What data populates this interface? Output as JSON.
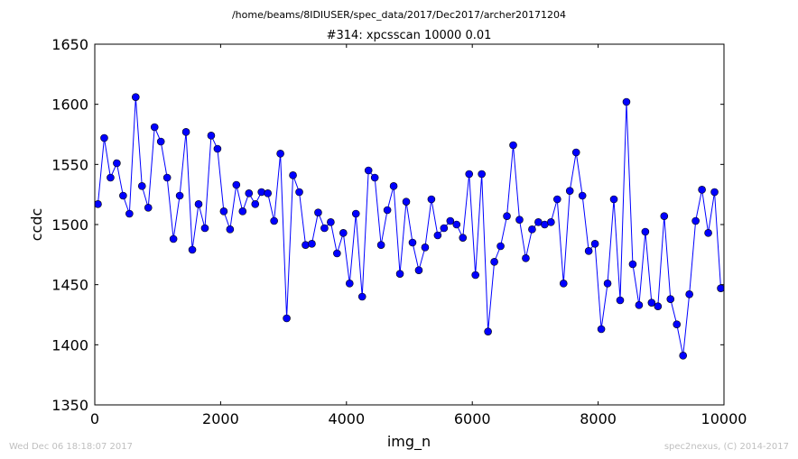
{
  "suptitle": "/home/beams/8IDIUSER/spec_data/2017/Dec2017/archer20171204",
  "footer_left": "Wed Dec 06 18:18:07 2017",
  "footer_right": "spec2nexus, (C) 2014-2017",
  "colors": {
    "series": "#0000ff",
    "axes": "#000000",
    "footer": "#bfbfbf"
  },
  "chart_data": {
    "type": "line",
    "title": "#314: xpcsscan 10000 0.01",
    "xlabel": "img_n",
    "ylabel": "ccdc",
    "xlim": [
      0,
      10000
    ],
    "ylim": [
      1350,
      1650
    ],
    "xticks": [
      0,
      2000,
      4000,
      6000,
      8000,
      10000
    ],
    "yticks": [
      1350,
      1400,
      1450,
      1500,
      1550,
      1600,
      1650
    ],
    "grid": false,
    "marker": "circle",
    "series": [
      {
        "x": [
          50,
          150,
          250,
          350,
          450,
          550,
          650,
          750,
          850,
          950,
          1050,
          1150,
          1250,
          1350,
          1450,
          1550,
          1650,
          1750,
          1850,
          1950,
          2050,
          2150,
          2250,
          2350,
          2450,
          2550,
          2650,
          2750,
          2850,
          2950,
          3050,
          3150,
          3250,
          3350,
          3450,
          3550,
          3650,
          3750,
          3850,
          3950,
          4050,
          4150,
          4250,
          4350,
          4450,
          4550,
          4650,
          4750,
          4850,
          4950,
          5050,
          5150,
          5250,
          5350,
          5450,
          5550,
          5650,
          5750,
          5850,
          5950,
          6050,
          6150,
          6250,
          6350,
          6450,
          6550,
          6650,
          6750,
          6850,
          6950,
          7050,
          7150,
          7250,
          7350,
          7450,
          7550,
          7650,
          7750,
          7850,
          7950,
          8050,
          8150,
          8250,
          8350,
          8450,
          8550,
          8650,
          8750,
          8850,
          8950,
          9050,
          9150,
          9250,
          9350,
          9450,
          9550,
          9650,
          9750,
          9850,
          9950
        ],
        "y": [
          1517,
          1572,
          1539,
          1551,
          1524,
          1509,
          1606,
          1532,
          1514,
          1581,
          1569,
          1539,
          1488,
          1524,
          1577,
          1479,
          1517,
          1497,
          1574,
          1563,
          1511,
          1496,
          1533,
          1511,
          1526,
          1517,
          1527,
          1526,
          1503,
          1559,
          1422,
          1541,
          1527,
          1483,
          1484,
          1510,
          1497,
          1502,
          1476,
          1493,
          1451,
          1509,
          1440,
          1545,
          1539,
          1483,
          1512,
          1532,
          1459,
          1519,
          1485,
          1462,
          1481,
          1521,
          1491,
          1497,
          1503,
          1500,
          1489,
          1542,
          1458,
          1542,
          1411,
          1469,
          1482,
          1507,
          1566,
          1504,
          1472,
          1496,
          1502,
          1500,
          1502,
          1521,
          1451,
          1528,
          1560,
          1524,
          1478,
          1484,
          1413,
          1451,
          1521,
          1437,
          1602,
          1467,
          1433,
          1494,
          1435,
          1432,
          1507,
          1438,
          1417,
          1391,
          1442,
          1503,
          1529,
          1493,
          1527,
          1447
        ]
      }
    ]
  }
}
